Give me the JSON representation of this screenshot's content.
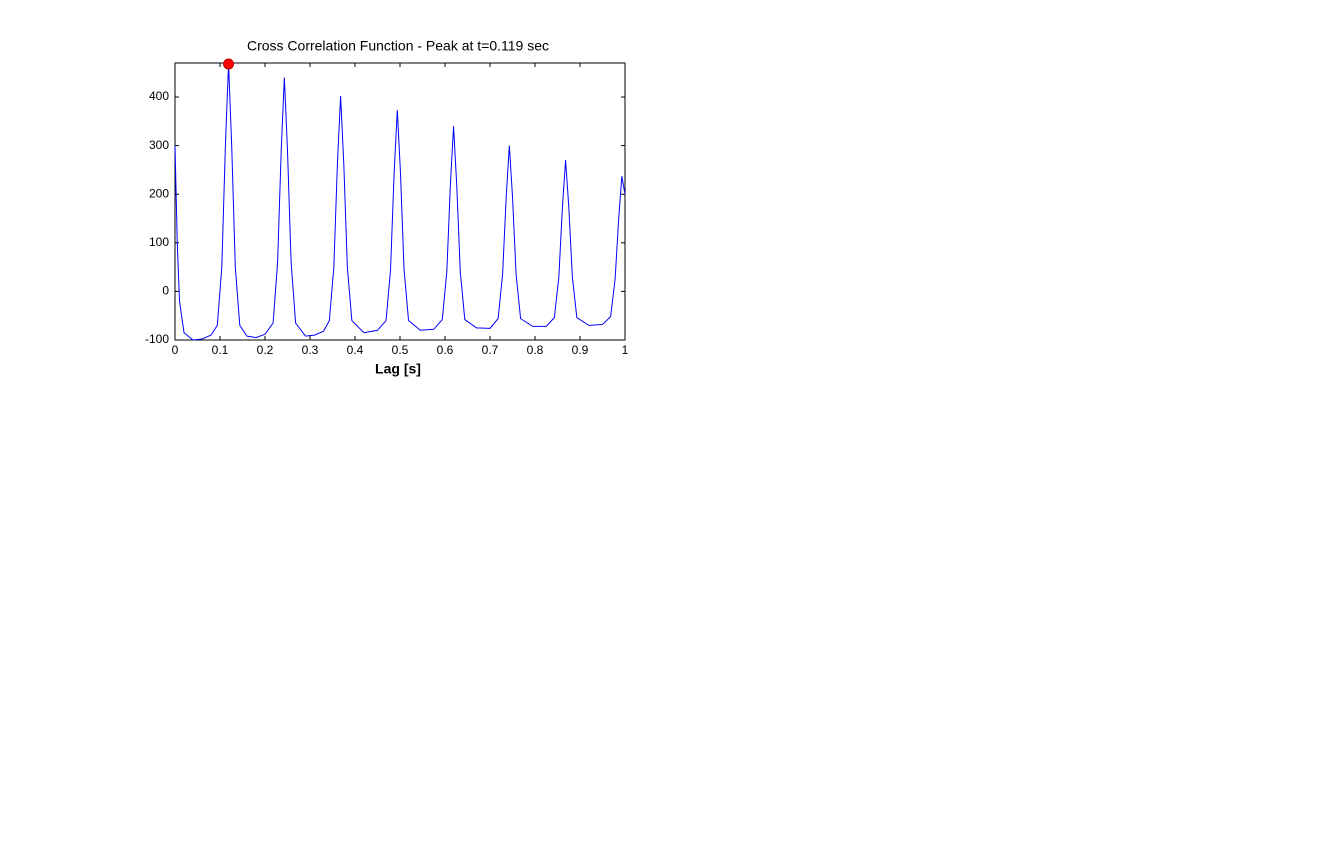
{
  "chart_data": {
    "type": "line",
    "title": "Cross Correlation Function - Peak at t=0.119 sec",
    "x_label": "Lag [s]",
    "x": [
      0,
      0.005,
      0.01,
      0.02,
      0.04,
      0.06,
      0.08,
      0.094,
      0.104,
      0.112,
      0.119,
      0.126,
      0.134,
      0.144,
      0.16,
      0.18,
      0.2,
      0.218,
      0.228,
      0.236,
      0.243,
      0.25,
      0.258,
      0.268,
      0.29,
      0.31,
      0.33,
      0.343,
      0.353,
      0.361,
      0.368,
      0.375,
      0.383,
      0.393,
      0.42,
      0.45,
      0.469,
      0.479,
      0.487,
      0.494,
      0.501,
      0.509,
      0.519,
      0.545,
      0.575,
      0.594,
      0.604,
      0.612,
      0.619,
      0.626,
      0.634,
      0.644,
      0.67,
      0.7,
      0.718,
      0.728,
      0.736,
      0.743,
      0.75,
      0.758,
      0.768,
      0.795,
      0.825,
      0.843,
      0.853,
      0.861,
      0.868,
      0.875,
      0.883,
      0.893,
      0.92,
      0.95,
      0.968,
      0.978,
      0.986,
      0.993,
      0.997,
      1.0
    ],
    "series": [
      {
        "color": "#0000ff",
        "values": [
          300,
          100,
          -20,
          -85,
          -100,
          -98,
          -90,
          -70,
          50,
          300,
          468,
          300,
          50,
          -70,
          -92,
          -95,
          -88,
          -65,
          60,
          290,
          440,
          290,
          60,
          -65,
          -92,
          -90,
          -82,
          -60,
          50,
          265,
          402,
          265,
          50,
          -60,
          -85,
          -80,
          -60,
          45,
          245,
          373,
          245,
          45,
          -60,
          -80,
          -78,
          -58,
          40,
          220,
          340,
          220,
          40,
          -58,
          -75,
          -76,
          -56,
          35,
          195,
          300,
          195,
          35,
          -56,
          -72,
          -72,
          -54,
          30,
          175,
          270,
          175,
          30,
          -54,
          -70,
          -68,
          -52,
          25,
          150,
          237,
          215,
          200
        ]
      }
    ],
    "marker": {
      "x": 0.119,
      "y": 468,
      "color": "#ff0000"
    },
    "xlim": [
      0,
      1
    ],
    "xticks": [
      0,
      0.1,
      0.2,
      0.3,
      0.4,
      0.5,
      0.6,
      0.7,
      0.8,
      0.9,
      1
    ],
    "ylim": [
      -100,
      470
    ],
    "yticks": [
      -100,
      0,
      100,
      200,
      300,
      400
    ]
  }
}
